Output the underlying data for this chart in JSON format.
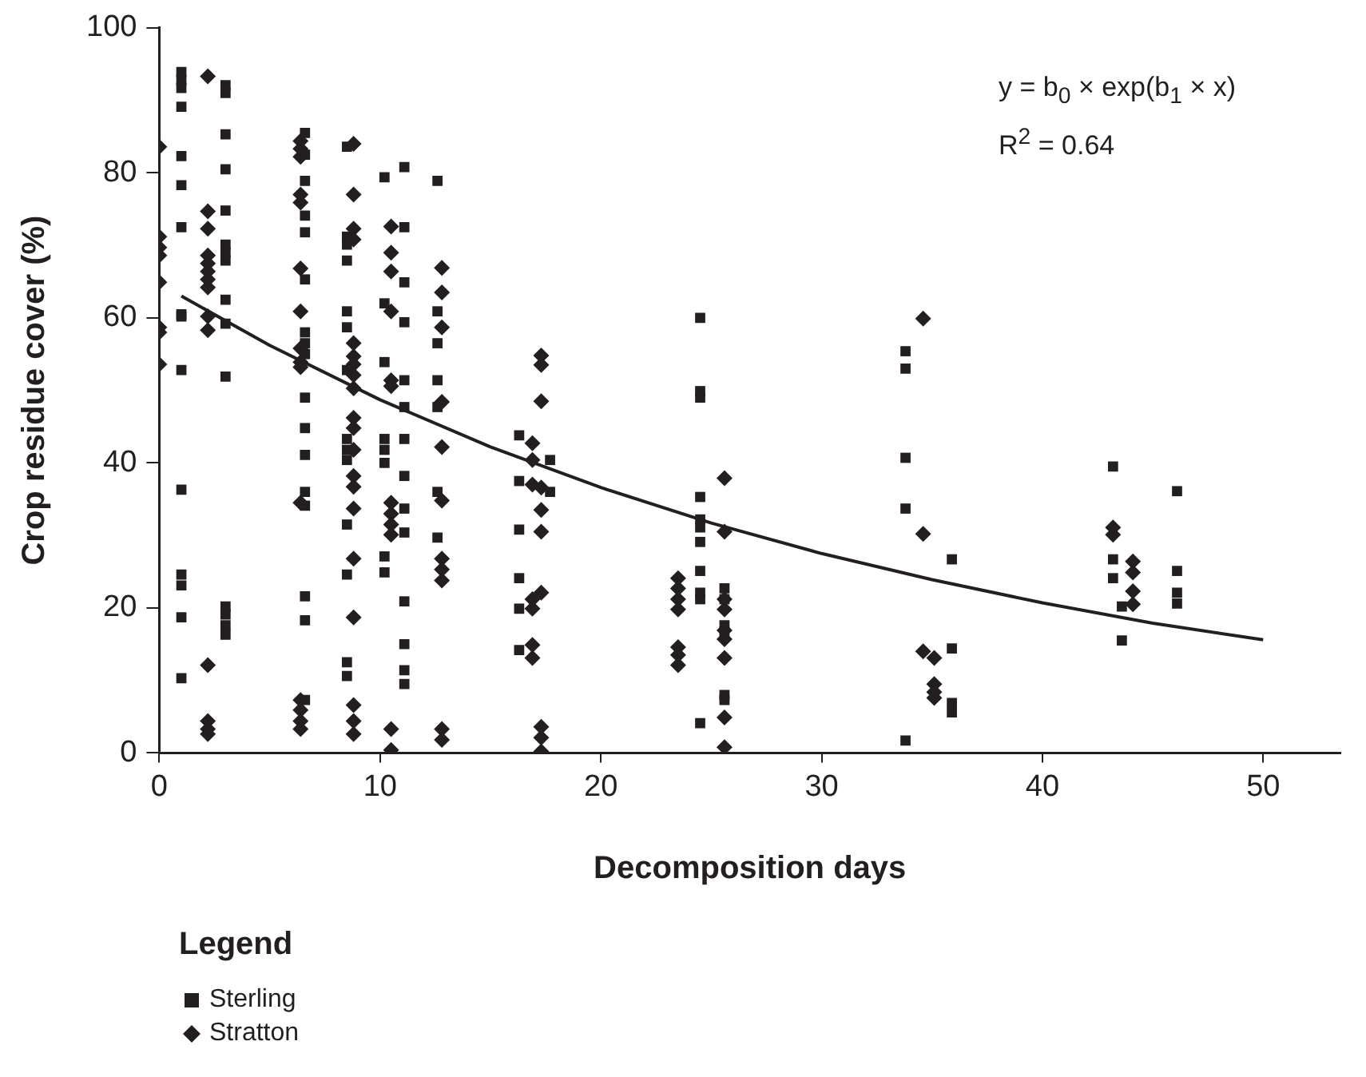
{
  "chart_data": {
    "type": "scatter",
    "xlabel": "Decomposition days",
    "ylabel": "Crop residue cover (%)",
    "legend_title": "Legend",
    "legend": "bottom left",
    "grid": false,
    "xlim": [
      0,
      53.5
    ],
    "xticks": [
      0,
      10,
      20,
      30,
      40,
      50
    ],
    "ylim": [
      0,
      100
    ],
    "yticks": [
      0,
      20,
      40,
      60,
      80,
      100
    ],
    "annotations": [
      "y = b$_{0}$ × exp(b$_{1}$ × x)",
      "R$^{2}$ = 0.64"
    ],
    "series": [
      {
        "name": "Sterling",
        "color": "#231f20",
        "marker": "square",
        "x": [
          1,
          1,
          1,
          1,
          1,
          1,
          1,
          1,
          1,
          1,
          1,
          1,
          1,
          1,
          1,
          3,
          3,
          3,
          3,
          3,
          3,
          3,
          3,
          3,
          3,
          3,
          3,
          3,
          3,
          3,
          6.6,
          6.6,
          6.6,
          6.6,
          6.6,
          6.6,
          6.6,
          6.6,
          6.6,
          6.6,
          6.6,
          6.6,
          6.6,
          6.6,
          6.6,
          6.6,
          6.6,
          8.5,
          8.5,
          8.5,
          8.5,
          8.5,
          8.5,
          8.5,
          8.5,
          8.5,
          8.5,
          8.5,
          8.5,
          8.5,
          8.5,
          10.2,
          10.2,
          10.2,
          10.2,
          10.2,
          10.2,
          10.2,
          10.2,
          11.1,
          11.1,
          11.1,
          11.1,
          11.1,
          11.1,
          11.1,
          11.1,
          11.1,
          11.1,
          11.1,
          11.1,
          11.1,
          11.1,
          12.6,
          12.6,
          12.6,
          12.6,
          12.6,
          12.6,
          12.6,
          16.3,
          16.3,
          16.3,
          16.3,
          16.3,
          16.3,
          17.7,
          17.7,
          24.5,
          24.5,
          24.5,
          24.5,
          24.5,
          24.5,
          24.5,
          24.5,
          24.5,
          24.5,
          24.5,
          25.6,
          25.6,
          25.6,
          25.6,
          25.6,
          25.6,
          33.8,
          33.8,
          33.8,
          33.8,
          33.8,
          35.9,
          35.9,
          35.9,
          35.9,
          43.2,
          43.2,
          43.2,
          43.6,
          43.6,
          46.1,
          46.1,
          46.1,
          46.1
        ],
        "values": [
          93.9,
          92.8,
          91.7,
          89.1,
          82.3,
          78.3,
          72.5,
          60.5,
          60.2,
          52.8,
          36.3,
          24.6,
          23.1,
          18.7,
          10.3,
          92.1,
          91,
          85.3,
          80.5,
          74.8,
          70.1,
          69,
          67.9,
          62.5,
          59.2,
          51.9,
          20.2,
          19.1,
          17.6,
          16.3,
          85.5,
          82.5,
          78.9,
          74.1,
          71.8,
          65.3,
          58,
          56.5,
          55,
          49,
          44.8,
          41.1,
          36,
          34.1,
          21.6,
          18.3,
          7.3,
          83.6,
          71.2,
          70.1,
          67.9,
          60.9,
          58.7,
          52.8,
          43.3,
          41.8,
          40.4,
          31.5,
          24.6,
          12.5,
          10.6,
          79.4,
          62,
          53.9,
          43.3,
          41.8,
          40,
          27.1,
          24.9,
          80.8,
          72.5,
          64.9,
          59.4,
          51.4,
          47.7,
          43.3,
          38.2,
          33.7,
          30.4,
          20.9,
          15,
          11.4,
          9.5,
          78.9,
          60.9,
          56.5,
          51.4,
          47.7,
          36,
          29.7,
          43.8,
          37.5,
          30.8,
          24.1,
          19.9,
          14.2,
          40.4,
          36,
          60,
          49.9,
          49,
          35.3,
          32.2,
          31.1,
          29.1,
          25.1,
          22.1,
          21.2,
          4.1,
          22.7,
          21.2,
          17.6,
          16.7,
          8,
          7.3,
          55.4,
          53,
          40.7,
          33.7,
          1.7,
          26.7,
          14.4,
          6.9,
          5.6,
          39.5,
          26.7,
          24.1,
          20.2,
          15.5,
          36.1,
          25.1,
          22.1,
          20.6
        ]
      },
      {
        "name": "Stratton",
        "color": "#231f20",
        "marker": "diamond",
        "x": [
          0,
          0,
          0,
          0,
          0,
          0,
          0,
          0,
          2.2,
          2.2,
          2.2,
          2.2,
          2.2,
          2.2,
          2.2,
          2.2,
          2.2,
          2.2,
          2.2,
          2.2,
          2.2,
          2.2,
          6.4,
          6.4,
          6.4,
          6.4,
          6.4,
          6.4,
          6.4,
          6.4,
          6.4,
          6.4,
          6.4,
          6.4,
          6.4,
          6.4,
          6.4,
          8.8,
          8.8,
          8.8,
          8.8,
          8.8,
          8.8,
          8.8,
          8.8,
          8.8,
          8.8,
          8.8,
          8.8,
          8.8,
          8.8,
          8.8,
          8.8,
          8.8,
          8.8,
          8.8,
          8.8,
          10.5,
          10.5,
          10.5,
          10.5,
          10.5,
          10.5,
          10.5,
          10.5,
          10.5,
          10.5,
          10.5,
          10.5,
          12.8,
          12.8,
          12.8,
          12.8,
          12.8,
          12.8,
          12.8,
          12.8,
          12.8,
          12.8,
          12.8,
          16.9,
          16.9,
          16.9,
          16.9,
          16.9,
          16.9,
          16.9,
          17.3,
          17.3,
          17.3,
          17.3,
          17.3,
          17.3,
          17.3,
          17.3,
          17.3,
          17.3,
          23.5,
          23.5,
          23.5,
          23.5,
          23.5,
          23.5,
          23.5,
          25.6,
          25.6,
          25.6,
          25.6,
          25.6,
          25.6,
          25.6,
          25.6,
          25.6,
          34.6,
          34.6,
          34.6,
          35.1,
          35.1,
          35.1,
          35.1,
          43.2,
          43.2,
          44.1,
          44.1,
          44.1,
          44.1
        ],
        "values": [
          83.6,
          71.2,
          69.7,
          68.6,
          64.9,
          58.7,
          58,
          53.6,
          93.3,
          74.7,
          72.3,
          68.6,
          67.5,
          66.4,
          65.3,
          64.2,
          60.2,
          58.3,
          12.1,
          4.4,
          3.3,
          2.6,
          84.4,
          83.3,
          82.2,
          77,
          75.9,
          66.8,
          60.9,
          55.8,
          53.9,
          53.2,
          34.5,
          7.3,
          5.9,
          4.4,
          3.3,
          84,
          77,
          72.3,
          70.8,
          56.5,
          54.7,
          53.6,
          52.1,
          50.3,
          46.2,
          44.8,
          41.8,
          38.2,
          36.7,
          33.7,
          26.8,
          18.7,
          6.6,
          4.4,
          2.6,
          72.6,
          69,
          66.4,
          60.9,
          51.4,
          50.6,
          34.5,
          33,
          31.5,
          30.1,
          3.3,
          0.4,
          66.9,
          63.5,
          58.7,
          48.4,
          42.2,
          34.8,
          26.8,
          25.3,
          23.8,
          3.3,
          1.8,
          42.7,
          40.4,
          37,
          21.2,
          19.9,
          14.9,
          13.1,
          54.8,
          53.5,
          48.5,
          36.6,
          33.5,
          30.5,
          22.1,
          3.6,
          2.1,
          0.2,
          24.1,
          22.7,
          21.2,
          19.8,
          14.6,
          13.5,
          12.1,
          37.9,
          30.5,
          21.2,
          19.8,
          16.9,
          15.7,
          13.1,
          4.9,
          0.8,
          59.9,
          30.2,
          14,
          13.1,
          9.5,
          8.4,
          7.6,
          31.1,
          30.1,
          26.4,
          24.9,
          22.3,
          20.5
        ]
      },
      {
        "type": "line",
        "color": "#231f20",
        "marker": "none",
        "x": [
          1,
          5,
          10,
          15,
          20,
          25,
          30,
          35,
          40,
          45,
          50
        ],
        "values": [
          63,
          56.2,
          48.7,
          42.2,
          36.6,
          31.7,
          27.5,
          23.9,
          20.7,
          17.9,
          15.6
        ]
      }
    ]
  }
}
